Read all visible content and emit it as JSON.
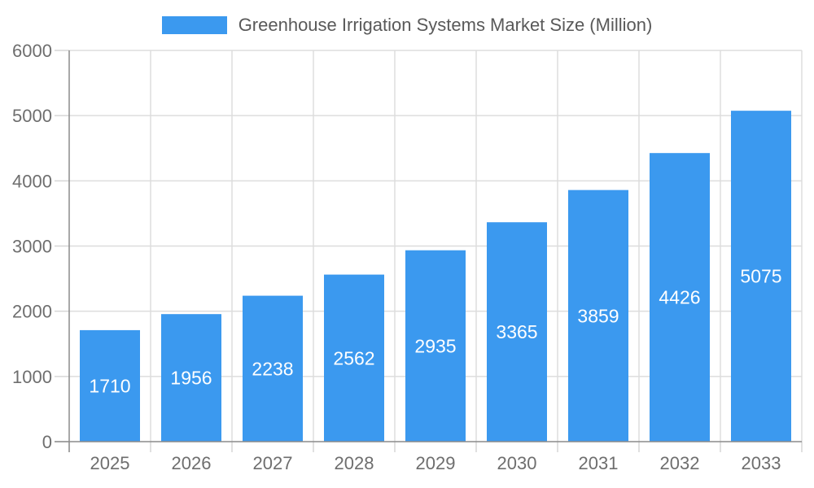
{
  "chart_data": {
    "type": "bar",
    "title": "Greenhouse Irrigation Systems Market Size (Million)",
    "legend": {
      "position": "top-center",
      "label": "Greenhouse Irrigation Systems Market Size (Million)"
    },
    "categories": [
      "2025",
      "2026",
      "2027",
      "2028",
      "2029",
      "2030",
      "2031",
      "2032",
      "2033"
    ],
    "values": [
      1710,
      1956,
      2238,
      2562,
      2935,
      3365,
      3859,
      4426,
      5075
    ],
    "value_labels_inside_bars": true,
    "xlabel": "",
    "ylabel": "",
    "ylim": [
      0,
      6000
    ],
    "yticks": [
      0,
      1000,
      2000,
      3000,
      4000,
      5000,
      6000
    ],
    "grid": "on",
    "colors": {
      "bar": "#3B99EF",
      "bar_value_label": "#FFFFFF",
      "gridline": "#DDDDDD",
      "tick": "#D6D6D6",
      "axis_line": "#8C8C8C",
      "axis_label": "#6E6E6E",
      "title_text": "#595959",
      "background": "#FFFFFF"
    }
  }
}
